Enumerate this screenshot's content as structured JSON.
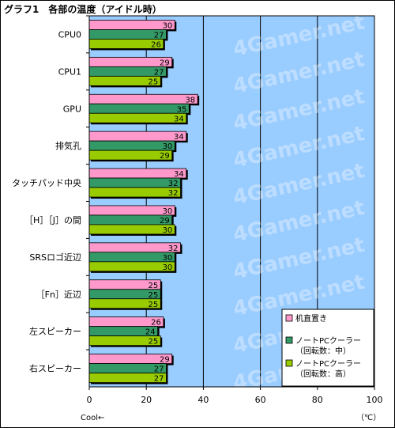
{
  "chart_data": {
    "type": "bar",
    "orientation": "horizontal",
    "title": "グラフ1　各部の温度（アイドル時）",
    "categories": [
      "CPU0",
      "CPU1",
      "GPU",
      "排気孔",
      "タッチパッド中央",
      "［H］［J］の間",
      "SRSロゴ近辺",
      "［Fn］近辺",
      "左スピーカー",
      "右スピーカー"
    ],
    "series": [
      {
        "name": "机直置き",
        "color": "#ff99cc",
        "values": [
          30,
          29,
          38,
          34,
          34,
          30,
          32,
          25,
          26,
          29
        ]
      },
      {
        "name_lines": [
          "ノートPCクーラー",
          "（回転数：中）"
        ],
        "color": "#339966",
        "values": [
          27,
          27,
          35,
          30,
          32,
          29,
          30,
          25,
          24,
          27
        ]
      },
      {
        "name_lines": [
          "ノートPCクーラー",
          "（回転数：高）"
        ],
        "color": "#99cc00",
        "values": [
          26,
          25,
          34,
          29,
          32,
          30,
          30,
          25,
          25,
          27
        ]
      }
    ],
    "xlim": [
      0,
      100
    ],
    "xticks": [
      0,
      20,
      40,
      60,
      80,
      100
    ],
    "xlabel_left": "Cool←",
    "unit": "（℃）",
    "watermark": "4Gamer.net",
    "plot_bg": "#99ccff",
    "grid": true,
    "legend_position": "lower-right",
    "data_labels": true
  }
}
